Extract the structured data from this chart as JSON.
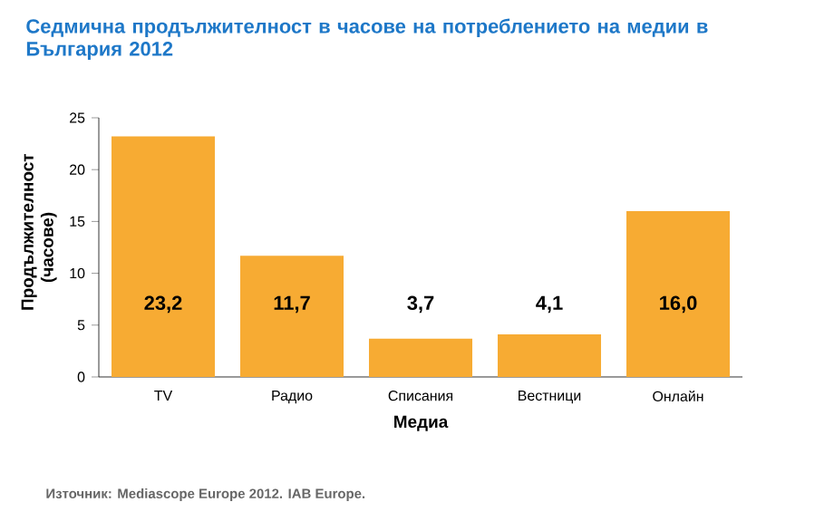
{
  "chart_data": {
    "type": "bar",
    "title": "Седмична продължителност в часове на потреблението на медии в България 2012",
    "xlabel": "Медиа",
    "ylabel": "Продължителност (часове)",
    "categories": [
      "TV",
      "Радио",
      "Списания",
      "Вестници",
      "Онлайн"
    ],
    "values": [
      23.2,
      11.7,
      3.7,
      4.1,
      16.0
    ],
    "value_labels": [
      "23,2",
      "11,7",
      "3,7",
      "4,1",
      "16,0"
    ],
    "color": "#f7ab33",
    "ylim": [
      0,
      25
    ],
    "yticks": [
      0,
      5,
      10,
      15,
      20,
      25
    ],
    "grid": false,
    "annotations": [
      "Източник: Mediascope Europe 2012. IAB Europe."
    ]
  }
}
